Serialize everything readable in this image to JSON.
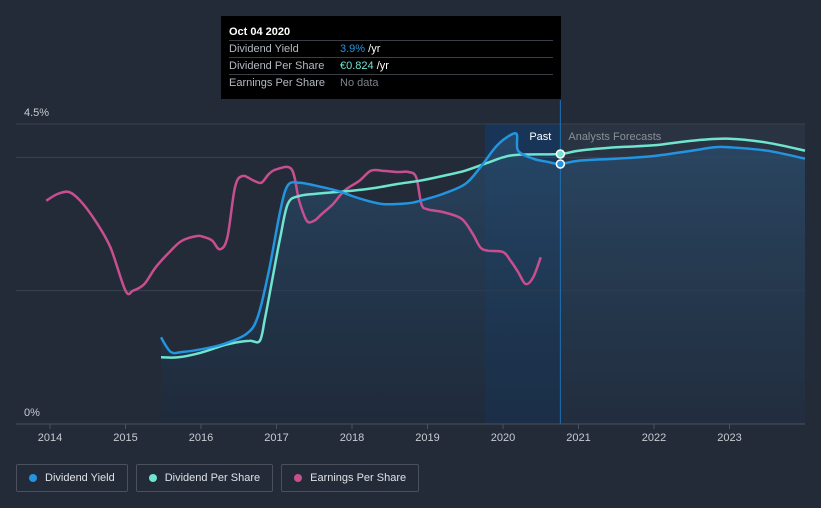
{
  "chart_data": {
    "type": "line",
    "y_axis": {
      "min": 0,
      "max": 4.5,
      "tick_labels": [
        "4.5%",
        "0%"
      ]
    },
    "x_axis": {
      "range": [
        2013.55,
        2024.0
      ],
      "tick_labels": [
        "2014",
        "2015",
        "2016",
        "2017",
        "2018",
        "2019",
        "2020",
        "2021",
        "2022",
        "2023"
      ],
      "tick_values": [
        2014,
        2015,
        2016,
        2017,
        2018,
        2019,
        2020,
        2021,
        2022,
        2023
      ]
    },
    "grid": true,
    "past_label": "Past",
    "forecast_label": "Analysts Forecasts",
    "tooltip": {
      "date": "Oct 04 2020",
      "x": 2020.76,
      "rows": [
        {
          "key": "Dividend Yield",
          "value": "3.9%",
          "unit": " /yr"
        },
        {
          "key": "Dividend Per Share",
          "value": "€0.824",
          "unit": " /yr"
        },
        {
          "key": "Earnings Per Share",
          "value": "No data",
          "unit": ""
        }
      ]
    },
    "series": [
      {
        "name": "Dividend Yield",
        "color": "#2394df",
        "points": [
          [
            2015.47,
            1.3
          ],
          [
            2015.6,
            1.08
          ],
          [
            2015.75,
            1.08
          ],
          [
            2016.0,
            1.12
          ],
          [
            2016.3,
            1.2
          ],
          [
            2016.6,
            1.35
          ],
          [
            2016.75,
            1.6
          ],
          [
            2016.9,
            2.3
          ],
          [
            2017.05,
            3.2
          ],
          [
            2017.15,
            3.58
          ],
          [
            2017.3,
            3.62
          ],
          [
            2017.5,
            3.58
          ],
          [
            2017.8,
            3.5
          ],
          [
            2018.0,
            3.42
          ],
          [
            2018.2,
            3.35
          ],
          [
            2018.4,
            3.3
          ],
          [
            2018.6,
            3.3
          ],
          [
            2018.8,
            3.32
          ],
          [
            2019.0,
            3.38
          ],
          [
            2019.2,
            3.45
          ],
          [
            2019.5,
            3.6
          ],
          [
            2019.7,
            3.85
          ],
          [
            2019.9,
            4.15
          ],
          [
            2020.05,
            4.3
          ],
          [
            2020.18,
            4.35
          ],
          [
            2020.2,
            4.1
          ],
          [
            2020.4,
            3.98
          ],
          [
            2020.6,
            3.93
          ],
          [
            2020.76,
            3.9
          ],
          [
            2021.0,
            3.95
          ],
          [
            2021.5,
            3.98
          ],
          [
            2022.0,
            4.02
          ],
          [
            2022.5,
            4.1
          ],
          [
            2022.8,
            4.15
          ],
          [
            2023.0,
            4.15
          ],
          [
            2023.5,
            4.1
          ],
          [
            2024.0,
            3.98
          ]
        ]
      },
      {
        "name": "Dividend Per Share",
        "color": "#6fe5d0",
        "points": [
          [
            2015.47,
            1.0
          ],
          [
            2015.7,
            1.0
          ],
          [
            2016.0,
            1.07
          ],
          [
            2016.3,
            1.18
          ],
          [
            2016.5,
            1.23
          ],
          [
            2016.65,
            1.25
          ],
          [
            2016.78,
            1.25
          ],
          [
            2016.85,
            1.6
          ],
          [
            2016.95,
            2.2
          ],
          [
            2017.05,
            2.8
          ],
          [
            2017.15,
            3.3
          ],
          [
            2017.3,
            3.42
          ],
          [
            2017.6,
            3.46
          ],
          [
            2018.0,
            3.5
          ],
          [
            2018.3,
            3.54
          ],
          [
            2018.6,
            3.6
          ],
          [
            2018.9,
            3.65
          ],
          [
            2019.2,
            3.72
          ],
          [
            2019.5,
            3.8
          ],
          [
            2019.8,
            3.92
          ],
          [
            2020.0,
            4.0
          ],
          [
            2020.2,
            4.04
          ],
          [
            2020.76,
            4.05
          ],
          [
            2021.0,
            4.1
          ],
          [
            2021.5,
            4.15
          ],
          [
            2022.0,
            4.18
          ],
          [
            2022.5,
            4.25
          ],
          [
            2023.0,
            4.28
          ],
          [
            2023.5,
            4.22
          ],
          [
            2024.0,
            4.1
          ]
        ]
      },
      {
        "name": "Earnings Per Share",
        "color": "#c84f8f",
        "points": [
          [
            2013.95,
            3.35
          ],
          [
            2014.1,
            3.45
          ],
          [
            2014.25,
            3.48
          ],
          [
            2014.4,
            3.35
          ],
          [
            2014.6,
            3.05
          ],
          [
            2014.8,
            2.65
          ],
          [
            2015.0,
            2.0
          ],
          [
            2015.1,
            2.0
          ],
          [
            2015.25,
            2.1
          ],
          [
            2015.4,
            2.35
          ],
          [
            2015.6,
            2.6
          ],
          [
            2015.75,
            2.75
          ],
          [
            2015.95,
            2.82
          ],
          [
            2016.05,
            2.8
          ],
          [
            2016.15,
            2.75
          ],
          [
            2016.25,
            2.62
          ],
          [
            2016.35,
            2.8
          ],
          [
            2016.45,
            3.55
          ],
          [
            2016.55,
            3.72
          ],
          [
            2016.7,
            3.65
          ],
          [
            2016.8,
            3.62
          ],
          [
            2016.9,
            3.75
          ],
          [
            2017.0,
            3.82
          ],
          [
            2017.2,
            3.82
          ],
          [
            2017.3,
            3.35
          ],
          [
            2017.4,
            3.05
          ],
          [
            2017.5,
            3.05
          ],
          [
            2017.6,
            3.15
          ],
          [
            2017.75,
            3.3
          ],
          [
            2017.9,
            3.5
          ],
          [
            2018.1,
            3.65
          ],
          [
            2018.25,
            3.8
          ],
          [
            2018.4,
            3.8
          ],
          [
            2018.6,
            3.78
          ],
          [
            2018.75,
            3.78
          ],
          [
            2018.85,
            3.7
          ],
          [
            2018.92,
            3.3
          ],
          [
            2019.0,
            3.22
          ],
          [
            2019.2,
            3.18
          ],
          [
            2019.45,
            3.08
          ],
          [
            2019.6,
            2.85
          ],
          [
            2019.7,
            2.65
          ],
          [
            2019.8,
            2.6
          ],
          [
            2020.0,
            2.58
          ],
          [
            2020.1,
            2.45
          ],
          [
            2020.2,
            2.28
          ],
          [
            2020.3,
            2.1
          ],
          [
            2020.4,
            2.2
          ],
          [
            2020.5,
            2.5
          ]
        ]
      }
    ],
    "markers": [
      {
        "series": "Dividend Yield",
        "x": 2020.76,
        "y": 3.9
      },
      {
        "series": "Dividend Per Share",
        "x": 2020.76,
        "y": 4.05
      }
    ]
  },
  "legend": {
    "items": [
      {
        "label": "Dividend Yield",
        "color": "#2394df"
      },
      {
        "label": "Dividend Per Share",
        "color": "#6fe5d0"
      },
      {
        "label": "Earnings Per Share",
        "color": "#c84f8f"
      }
    ]
  }
}
